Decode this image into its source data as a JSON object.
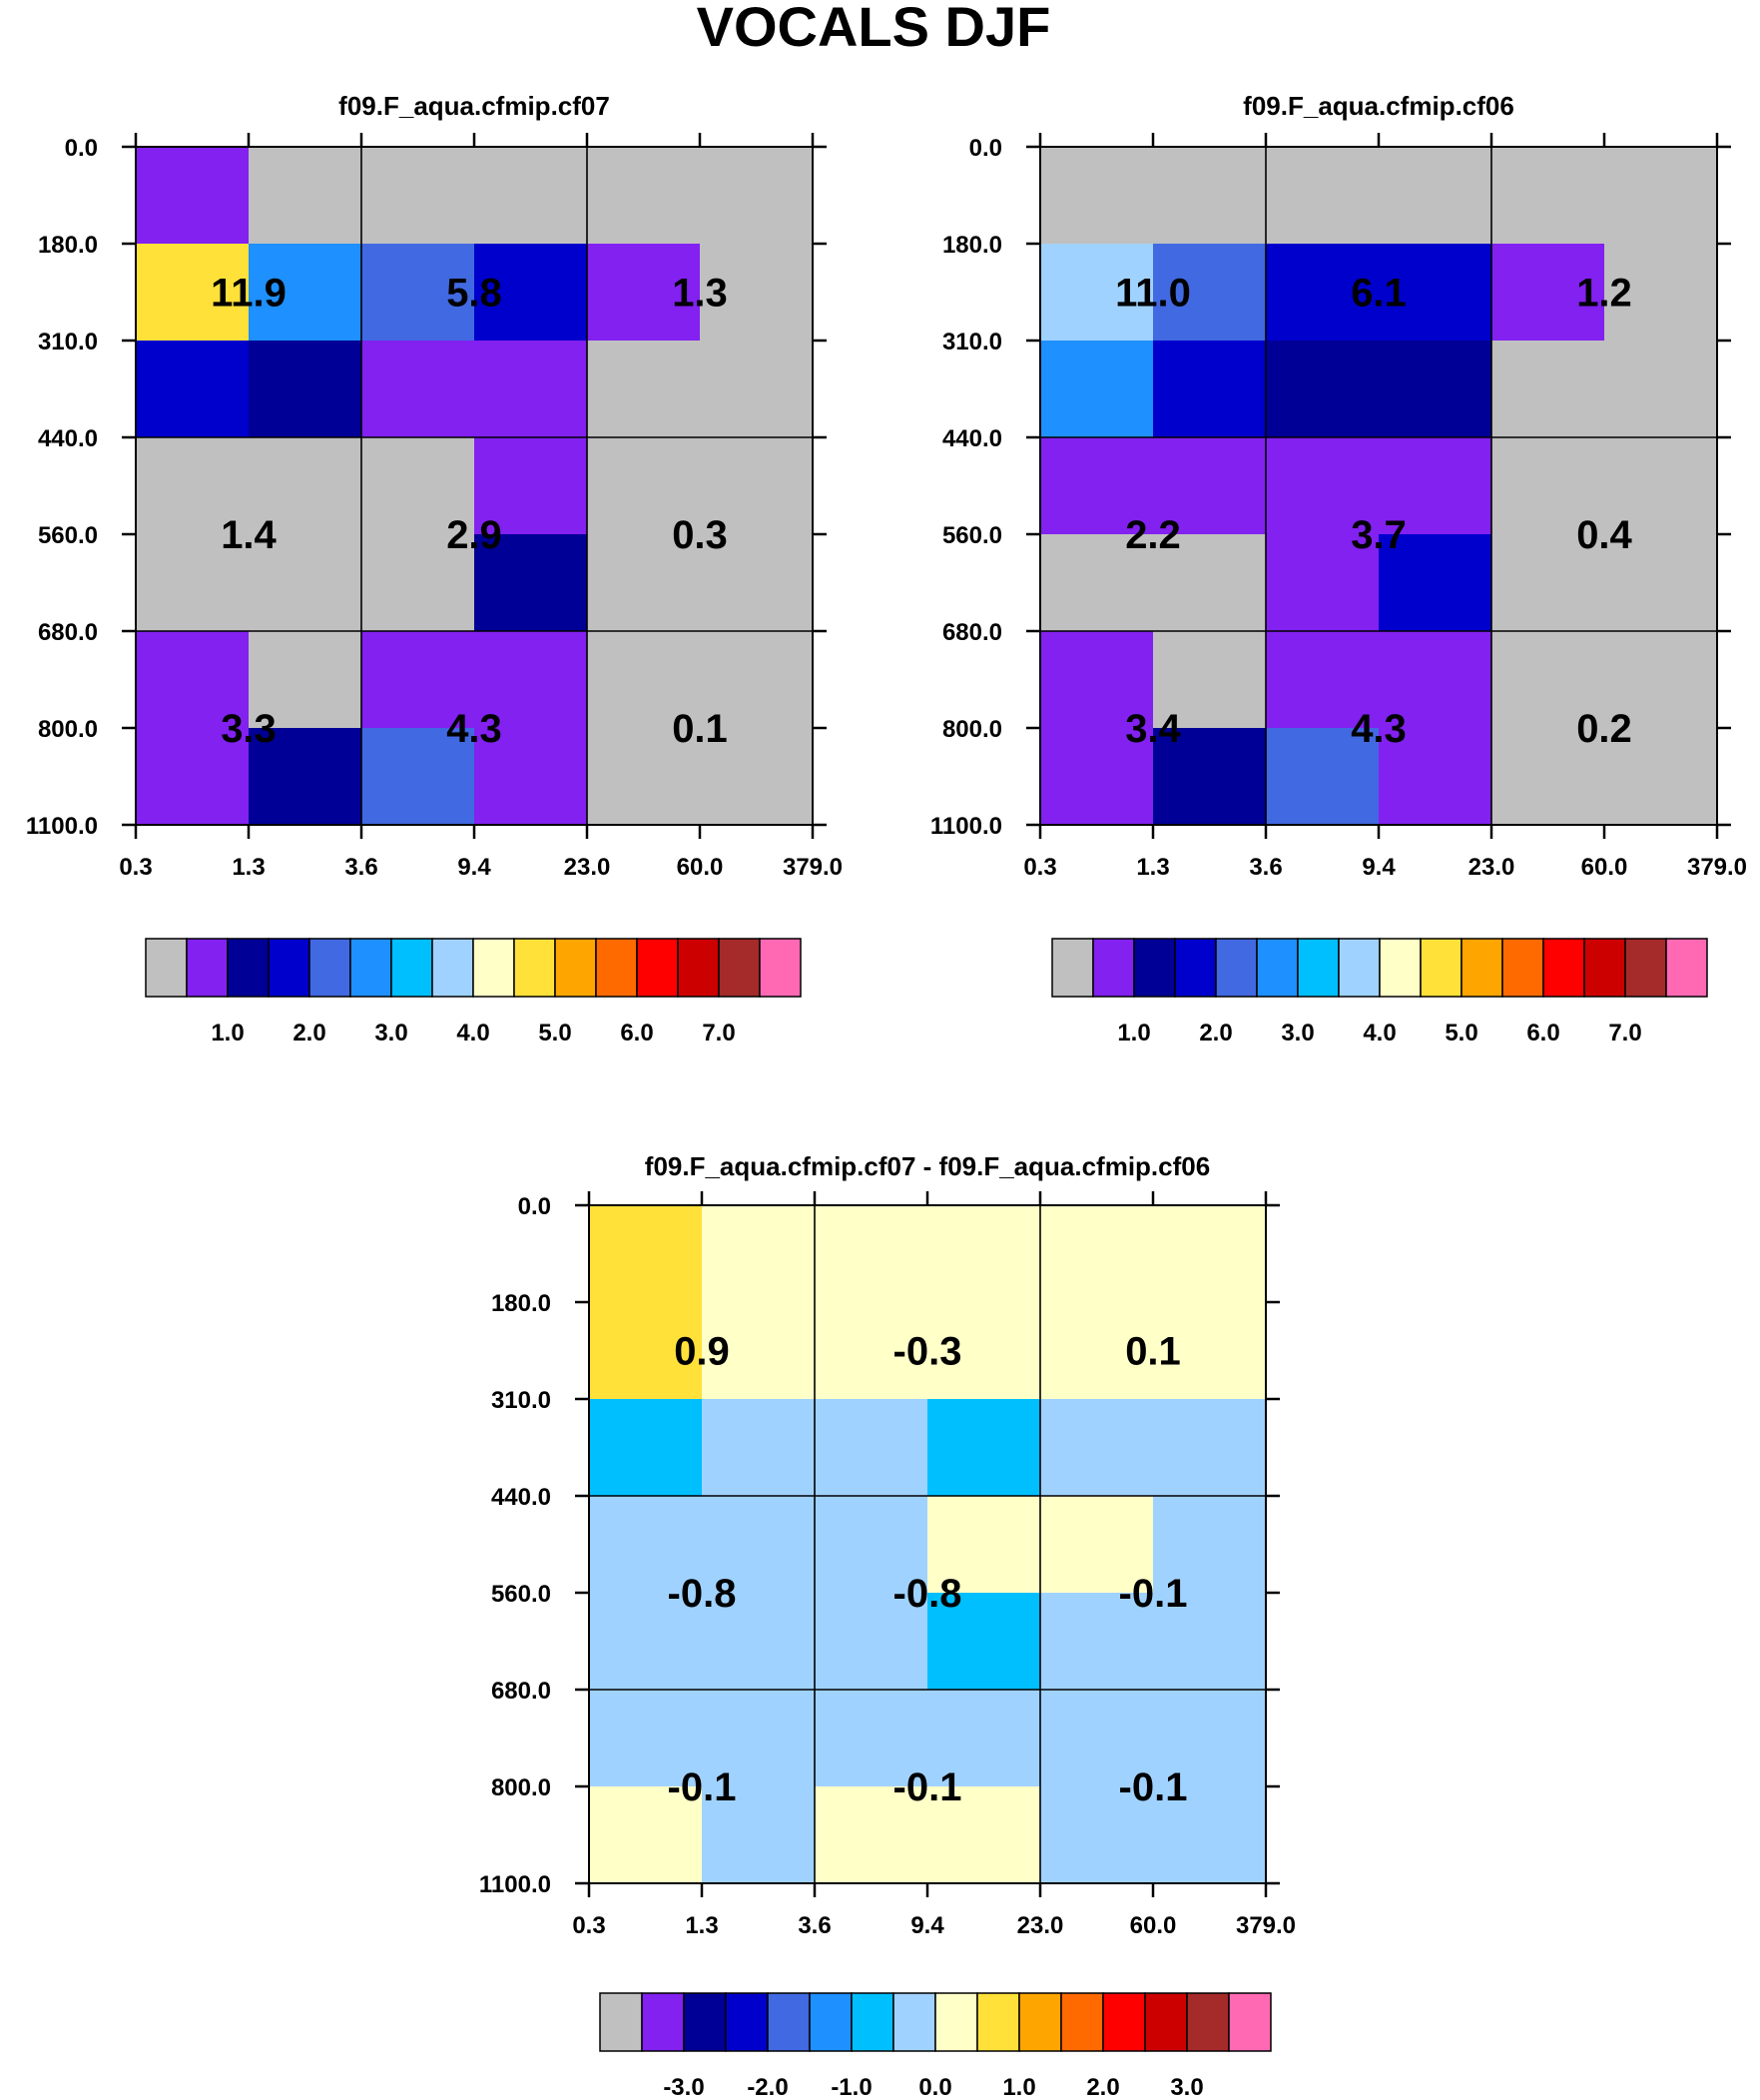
{
  "title": "VOCALS DJF",
  "palette": [
    "#c0c0c0",
    "#8221f0",
    "#000096",
    "#0000cd",
    "#4169e1",
    "#1e90ff",
    "#00bfff",
    "#a0d2ff",
    "#ffffc8",
    "#ffe13a",
    "#ffa500",
    "#ff6a00",
    "#ff0000",
    "#cd0000",
    "#a52a2a",
    "#ff69b4"
  ],
  "chart_data": [
    {
      "type": "heatmap",
      "title": "f09.F_aqua.cfmip.cf07",
      "x_ticks": [
        "0.3",
        "1.3",
        "3.6",
        "9.4",
        "23.0",
        "60.0",
        "379.0"
      ],
      "y_ticks": [
        "0.0",
        "180.0",
        "310.0",
        "440.0",
        "560.0",
        "680.0",
        "800.0",
        "1100.0"
      ],
      "cells": [
        [
          1,
          0,
          0,
          0,
          0,
          0
        ],
        [
          9,
          5,
          4,
          3,
          1,
          0
        ],
        [
          3,
          2,
          1,
          1,
          0,
          0
        ],
        [
          0,
          0,
          0,
          1,
          0,
          0
        ],
        [
          0,
          0,
          0,
          2,
          0,
          0
        ],
        [
          1,
          0,
          1,
          1,
          0,
          0
        ],
        [
          1,
          2,
          4,
          1,
          0,
          0
        ]
      ],
      "box_values": [
        [
          "11.9",
          "5.8",
          "1.3"
        ],
        [
          "1.4",
          "2.9",
          "0.3"
        ],
        [
          "3.3",
          "4.3",
          "0.1"
        ]
      ],
      "colorbar_labels": [
        "1.0",
        "2.0",
        "3.0",
        "4.0",
        "5.0",
        "6.0",
        "7.0"
      ]
    },
    {
      "type": "heatmap",
      "title": "f09.F_aqua.cfmip.cf06",
      "x_ticks": [
        "0.3",
        "1.3",
        "3.6",
        "9.4",
        "23.0",
        "60.0",
        "379.0"
      ],
      "y_ticks": [
        "0.0",
        "180.0",
        "310.0",
        "440.0",
        "560.0",
        "680.0",
        "800.0",
        "1100.0"
      ],
      "cells": [
        [
          0,
          0,
          0,
          0,
          0,
          0
        ],
        [
          7,
          4,
          3,
          3,
          1,
          0
        ],
        [
          5,
          3,
          2,
          2,
          0,
          0
        ],
        [
          1,
          1,
          1,
          1,
          0,
          0
        ],
        [
          0,
          0,
          1,
          3,
          0,
          0
        ],
        [
          1,
          0,
          1,
          1,
          0,
          0
        ],
        [
          1,
          2,
          4,
          1,
          0,
          0
        ]
      ],
      "box_values": [
        [
          "11.0",
          "6.1",
          "1.2"
        ],
        [
          "2.2",
          "3.7",
          "0.4"
        ],
        [
          "3.4",
          "4.3",
          "0.2"
        ]
      ],
      "colorbar_labels": [
        "1.0",
        "2.0",
        "3.0",
        "4.0",
        "5.0",
        "6.0",
        "7.0"
      ]
    },
    {
      "type": "heatmap",
      "title": "f09.F_aqua.cfmip.cf07 - f09.F_aqua.cfmip.cf06",
      "x_ticks": [
        "0.3",
        "1.3",
        "3.6",
        "9.4",
        "23.0",
        "60.0",
        "379.0"
      ],
      "y_ticks": [
        "0.0",
        "180.0",
        "310.0",
        "440.0",
        "560.0",
        "680.0",
        "800.0",
        "1100.0"
      ],
      "cells": [
        [
          9,
          8,
          8,
          8,
          8,
          8
        ],
        [
          9,
          8,
          8,
          8,
          8,
          8
        ],
        [
          6,
          7,
          7,
          6,
          7,
          7
        ],
        [
          7,
          7,
          7,
          8,
          8,
          7
        ],
        [
          7,
          7,
          7,
          6,
          7,
          7
        ],
        [
          7,
          7,
          7,
          7,
          7,
          7
        ],
        [
          8,
          7,
          8,
          8,
          7,
          7
        ]
      ],
      "box_values": [
        [
          "0.9",
          "-0.3",
          "0.1"
        ],
        [
          "-0.8",
          "-0.8",
          "-0.1"
        ],
        [
          "-0.1",
          "-0.1",
          "-0.1"
        ]
      ],
      "colorbar_labels": [
        "-3.0",
        "-2.0",
        "-1.0",
        "0.0",
        "1.0",
        "2.0",
        "3.0"
      ]
    }
  ]
}
